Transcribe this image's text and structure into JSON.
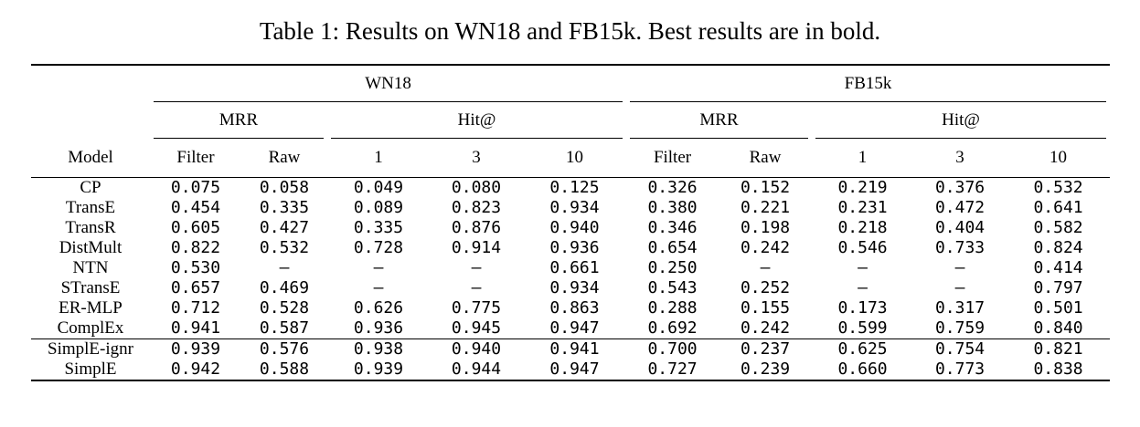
{
  "caption": "Table 1: Results on WN18 and FB15k. Best results are in bold.",
  "groups": [
    "WN18",
    "FB15k"
  ],
  "subgroups": [
    "MRR",
    "Hit@",
    "MRR",
    "Hit@"
  ],
  "columns": [
    "Model",
    "Filter",
    "Raw",
    "1",
    "3",
    "10",
    "Filter",
    "Raw",
    "1",
    "3",
    "10"
  ],
  "rows": [
    {
      "model": "CP",
      "values": [
        "0.075",
        "0.058",
        "0.049",
        "0.080",
        "0.125",
        "0.326",
        "0.152",
        "0.219",
        "0.376",
        "0.532"
      ],
      "bold": []
    },
    {
      "model": "TransE",
      "values": [
        "0.454",
        "0.335",
        "0.089",
        "0.823",
        "0.934",
        "0.380",
        "0.221",
        "0.231",
        "0.472",
        "0.641"
      ],
      "bold": []
    },
    {
      "model": "TransR",
      "values": [
        "0.605",
        "0.427",
        "0.335",
        "0.876",
        "0.940",
        "0.346",
        "0.198",
        "0.218",
        "0.404",
        "0.582"
      ],
      "bold": []
    },
    {
      "model": "DistMult",
      "values": [
        "0.822",
        "0.532",
        "0.728",
        "0.914",
        "0.936",
        "0.654",
        "0.242",
        "0.546",
        "0.733",
        "0.824"
      ],
      "bold": []
    },
    {
      "model": "NTN",
      "values": [
        "0.530",
        "—",
        "—",
        "—",
        "0.661",
        "0.250",
        "—",
        "—",
        "—",
        "0.414"
      ],
      "bold": []
    },
    {
      "model": "STransE",
      "values": [
        "0.657",
        "0.469",
        "—",
        "—",
        "0.934",
        "0.543",
        "0.252",
        "—",
        "—",
        "0.797"
      ],
      "bold": [
        6
      ]
    },
    {
      "model": "ER-MLP",
      "values": [
        "0.712",
        "0.528",
        "0.626",
        "0.775",
        "0.863",
        "0.288",
        "0.155",
        "0.173",
        "0.317",
        "0.501"
      ],
      "bold": []
    },
    {
      "model": "ComplEx",
      "values": [
        "0.941",
        "0.587",
        "0.936",
        "0.945",
        "0.947",
        "0.692",
        "0.242",
        "0.599",
        "0.759",
        "0.840"
      ],
      "bold": [
        3,
        4,
        9
      ]
    },
    {
      "model": "SimplE-ignr",
      "values": [
        "0.939",
        "0.576",
        "0.938",
        "0.940",
        "0.941",
        "0.700",
        "0.237",
        "0.625",
        "0.754",
        "0.821"
      ],
      "bold": []
    },
    {
      "model": "SimplE",
      "values": [
        "0.942",
        "0.588",
        "0.939",
        "0.944",
        "0.947",
        "0.727",
        "0.239",
        "0.660",
        "0.773",
        "0.838"
      ],
      "bold": [
        0,
        1,
        2,
        4,
        5,
        7,
        8
      ]
    }
  ]
}
